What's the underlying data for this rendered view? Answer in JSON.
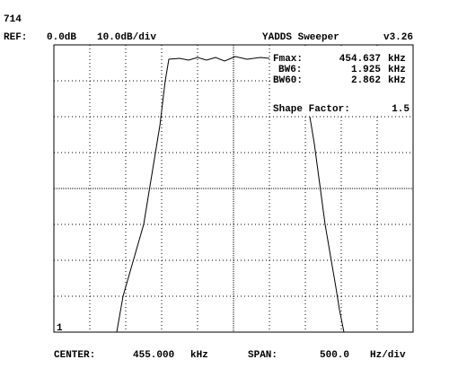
{
  "header": {
    "id": "714",
    "ref_label": "REF:",
    "ref_level": "0.0dB",
    "scale": "10.0dB/div",
    "app": "YADDS Sweeper",
    "version": "v3.26"
  },
  "readouts": [
    {
      "label": "Fmax:",
      "value": "454.637",
      "unit": "kHz"
    },
    {
      "label": "BW6:",
      "value": "1.925",
      "unit": "kHz"
    },
    {
      "label": "BW60:",
      "value": "2.862",
      "unit": "kHz"
    }
  ],
  "shape_factor": {
    "label": "Shape Factor:",
    "value": "1.5"
  },
  "marker": "1",
  "footer": {
    "center_label": "CENTER:",
    "center_value": "455.000",
    "center_unit": "kHz",
    "span_label": "SPAN:",
    "span_value": "500.0",
    "span_unit": "Hz/div"
  }
}
